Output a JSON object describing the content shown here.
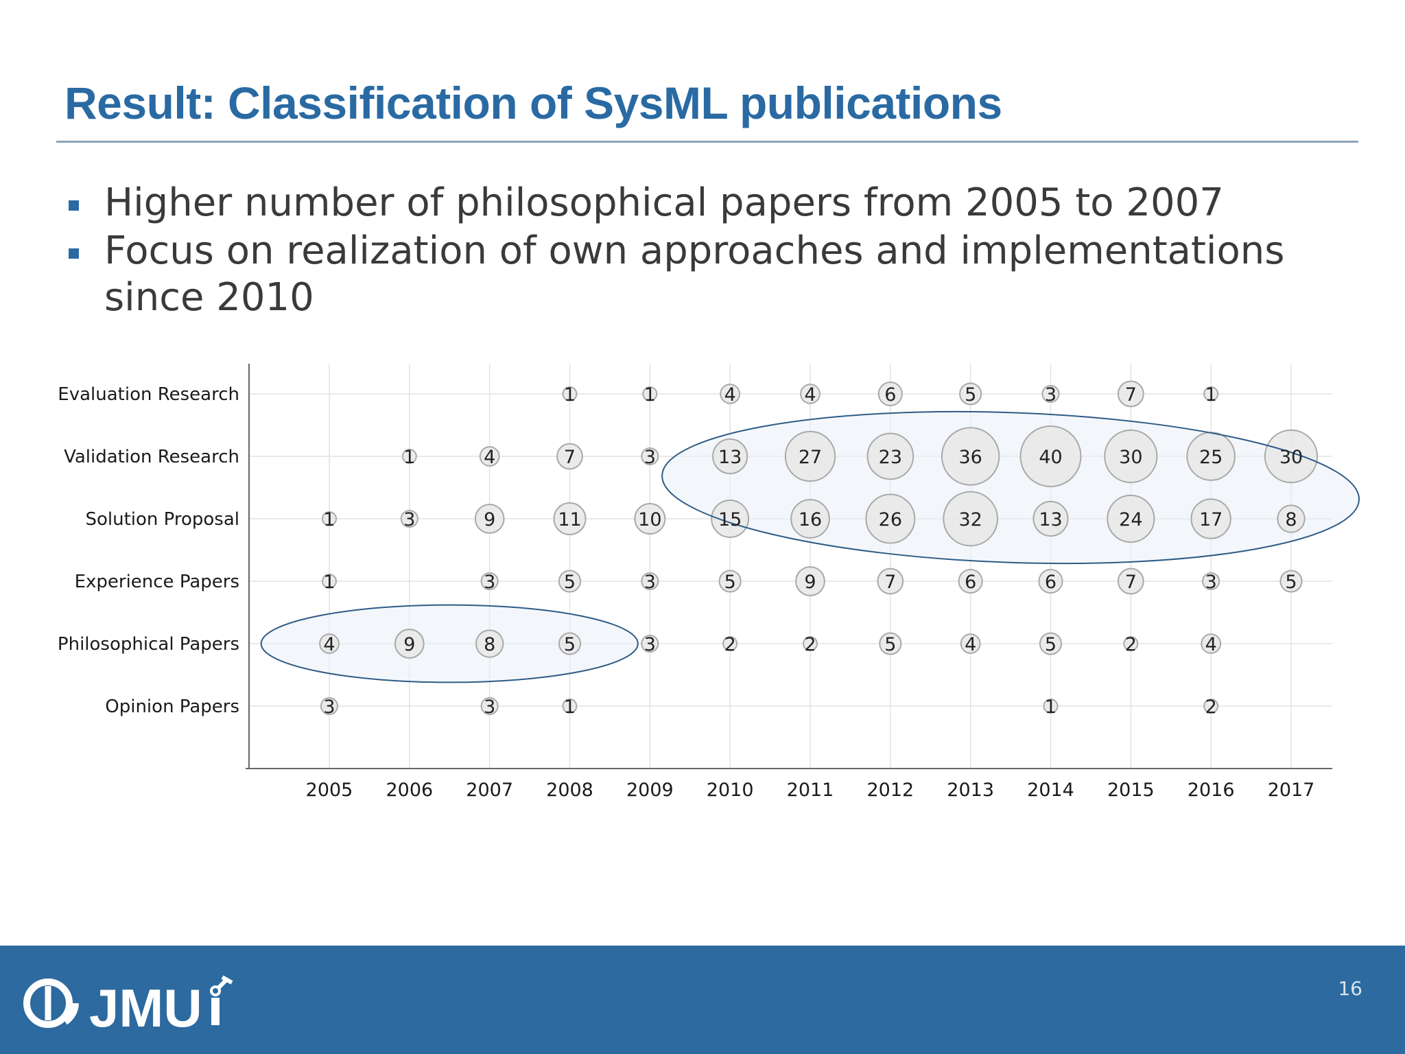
{
  "slide": {
    "title": "Result: Classification of SysML publications",
    "bullets": [
      "Higher number of philosophical papers from 2005 to 2007",
      "Focus on realization of own approaches and implementations since 2010"
    ],
    "page_number": "16",
    "logo_text": "JMU",
    "accent_color": "#2a6aa3",
    "footer_color": "#2c6a9f",
    "highlight_color": "#e9f1f8"
  },
  "chart_data": {
    "type": "bubble",
    "title": "",
    "xlabel": "",
    "ylabel": "",
    "years": [
      "2005",
      "2006",
      "2007",
      "2008",
      "2009",
      "2010",
      "2011",
      "2012",
      "2013",
      "2014",
      "2015",
      "2016",
      "2017"
    ],
    "categories": [
      "Evaluation Research",
      "Validation Research",
      "Solution Proposal",
      "Experience Papers",
      "Philosophical Papers",
      "Opinion Papers"
    ],
    "values": [
      [
        null,
        null,
        null,
        1,
        1,
        4,
        4,
        6,
        5,
        3,
        7,
        1,
        null
      ],
      [
        null,
        1,
        4,
        7,
        3,
        13,
        27,
        23,
        36,
        40,
        30,
        25,
        30
      ],
      [
        1,
        3,
        9,
        11,
        10,
        15,
        16,
        26,
        32,
        13,
        24,
        17,
        8
      ],
      [
        1,
        null,
        3,
        5,
        3,
        5,
        9,
        7,
        6,
        6,
        7,
        3,
        5
      ],
      [
        4,
        9,
        8,
        5,
        3,
        2,
        2,
        5,
        4,
        5,
        2,
        4,
        null
      ],
      [
        3,
        null,
        3,
        1,
        null,
        null,
        null,
        null,
        null,
        1,
        null,
        2,
        null
      ]
    ],
    "highlights": [
      {
        "categories": [
          "Validation Research",
          "Solution Proposal"
        ],
        "from": "2010",
        "to": "2017"
      },
      {
        "categories": [
          "Philosophical Papers"
        ],
        "from": "2005",
        "to": "2008"
      }
    ],
    "grid": true,
    "bubble_color": "#e8e8e8"
  }
}
